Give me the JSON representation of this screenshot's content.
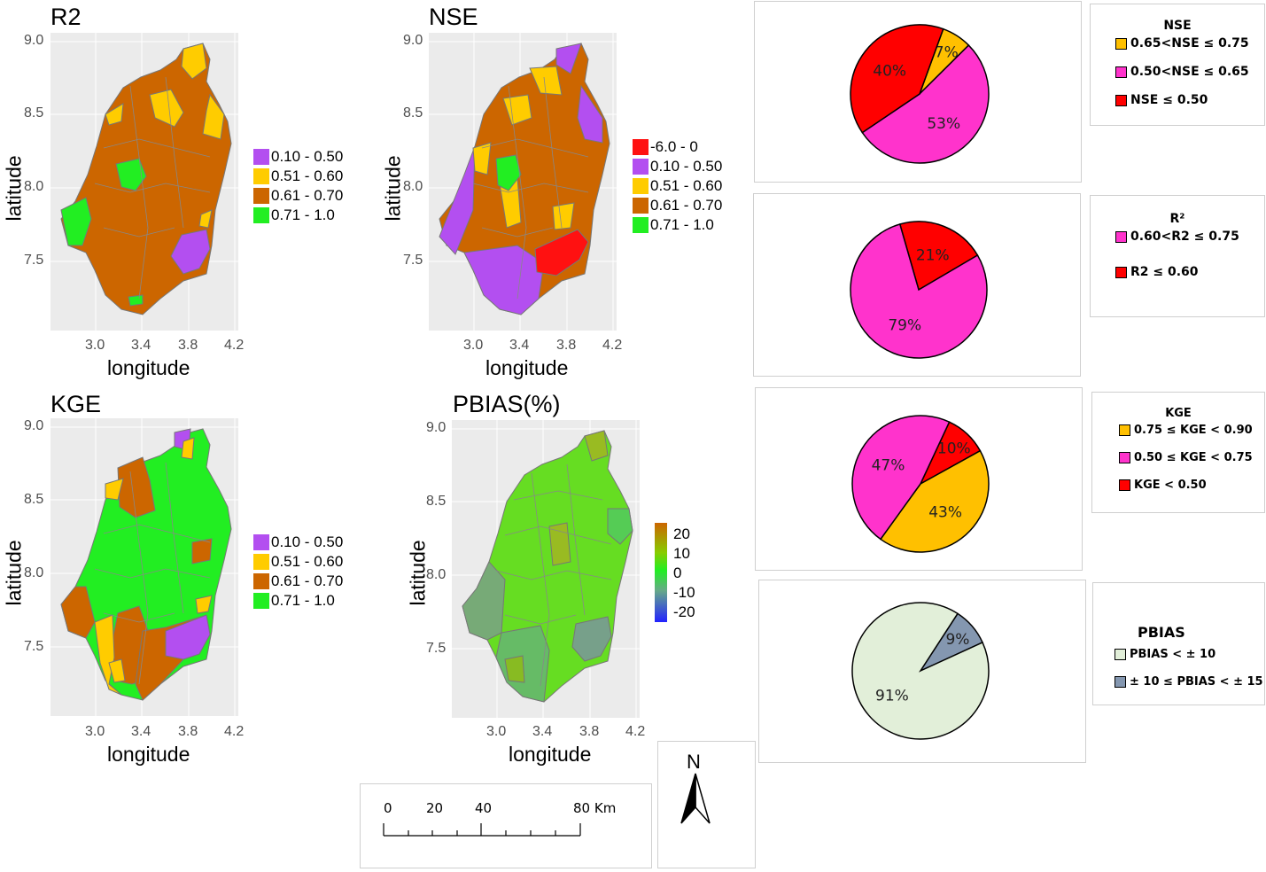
{
  "colors": {
    "purple": "#b34ff0",
    "yellow": "#ffcc00",
    "brown": "#cc6600",
    "green": "#22ee22",
    "red": "#ff1111",
    "magenta": "#ff33cc",
    "orange": "#ffc000",
    "pale": "#e2efd9",
    "slate": "#8497b0",
    "panel": "#ebebeb"
  },
  "maps": {
    "r2": {
      "title": "R2",
      "xlabel": "longitude",
      "ylabel": "latitude",
      "xticks": [
        "3.0",
        "3.4",
        "3.8",
        "4.2"
      ],
      "yticks": [
        "9.0",
        "8.5",
        "8.0",
        "7.5"
      ],
      "legend": [
        "0.10 - 0.50",
        "0.51 - 0.60",
        "0.61 - 0.70",
        "0.71 - 1.0"
      ]
    },
    "nse": {
      "title": "NSE",
      "xlabel": "longitude",
      "ylabel": "latitude",
      "xticks": [
        "3.0",
        "3.4",
        "3.8",
        "4.2"
      ],
      "yticks": [
        "9.0",
        "8.5",
        "8.0",
        "7.5"
      ],
      "legend": [
        "-6.0 - 0",
        "0.10 - 0.50",
        "0.51 - 0.60",
        "0.61 - 0.70",
        "0.71 - 1.0"
      ]
    },
    "kge": {
      "title": "KGE",
      "xlabel": "longitude",
      "ylabel": "latitude",
      "xticks": [
        "3.0",
        "3.4",
        "3.8",
        "4.2"
      ],
      "yticks": [
        "9.0",
        "8.5",
        "8.0",
        "7.5"
      ],
      "legend": [
        "0.10 - 0.50",
        "0.51 - 0.60",
        "0.61 - 0.70",
        "0.71 - 1.0"
      ]
    },
    "pbias": {
      "title": "PBIAS(%)",
      "xlabel": "longitude",
      "ylabel": "latitude",
      "xticks": [
        "3.0",
        "3.4",
        "3.8",
        "4.2"
      ],
      "yticks": [
        "9.0",
        "8.5",
        "8.0",
        "7.5"
      ],
      "legend": [
        "20",
        "10",
        "0",
        "-10",
        "-20"
      ]
    }
  },
  "pies": {
    "nse": {
      "title": "NSE",
      "slices": [
        {
          "label": "7%",
          "value": 7,
          "color": "#ffc000"
        },
        {
          "label": "53%",
          "value": 53,
          "color": "#ff33cc"
        },
        {
          "label": "40%",
          "value": 40,
          "color": "#ff0000"
        }
      ],
      "legend": [
        "0.65<NSE ≤ 0.75",
        "0.50<NSE ≤ 0.65",
        "NSE  ≤  0.50"
      ]
    },
    "r2": {
      "title": "R²",
      "slices": [
        {
          "label": "21%",
          "value": 21,
          "color": "#ff0000"
        },
        {
          "label": "79%",
          "value": 79,
          "color": "#ff33cc"
        }
      ],
      "legend": [
        "0.60<R2 ≤ 0.75",
        "R2 ≤ 0.60"
      ]
    },
    "kge": {
      "title": "KGE",
      "slices": [
        {
          "label": "10%",
          "value": 10,
          "color": "#ff0000"
        },
        {
          "label": "43%",
          "value": 43,
          "color": "#ffc000"
        },
        {
          "label": "47%",
          "value": 47,
          "color": "#ff33cc"
        }
      ],
      "legend": [
        "0.75 ≤ KGE < 0.90",
        "0.50 ≤ KGE < 0.75",
        "KGE <  0.50"
      ]
    },
    "pbias": {
      "title": "PBIAS",
      "slices": [
        {
          "label": "9%",
          "value": 9,
          "color": "#8497b0"
        },
        {
          "label": "91%",
          "value": 91,
          "color": "#e2efd9"
        }
      ],
      "legend": [
        "PBIAS < ± 10",
        "± 10 ≤ PBIAS < ± 15"
      ]
    }
  },
  "scalebar": {
    "labels": [
      "0",
      "20",
      "40",
      "80 Km"
    ]
  },
  "north": {
    "label": "N"
  }
}
